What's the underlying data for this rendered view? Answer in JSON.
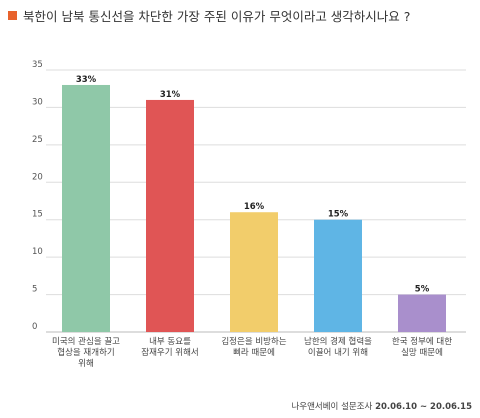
{
  "title": "북한이 남북 통신선을 차단한 가장 주된 이유가 무엇이라고 생각하시나요 ?",
  "title_marker_color": "#e8622c",
  "source": "나우앤서베이 설문조사",
  "source_dates": "20.06.10 ~ 20.06.15",
  "chart_data": {
    "type": "bar",
    "title": "북한이 남북 통신선을 차단한 가장 주된 이유가 무엇이라고 생각하시나요 ?",
    "categories": [
      [
        "미국의 관심을 끌고",
        "협상을 재개하기",
        "위해"
      ],
      [
        "내부 동요를",
        "잠재우기 위해서"
      ],
      [
        "김정은을 비방하는",
        "삐라 때문에"
      ],
      [
        "남한의 경제 협력을",
        "이끌어 내기 위해"
      ],
      [
        "한국 정부에 대한",
        "실망 때문에"
      ]
    ],
    "values": [
      33,
      31,
      16,
      15,
      5
    ],
    "value_labels": [
      "33%",
      "31%",
      "16%",
      "15%",
      "5%"
    ],
    "colors": [
      "#8fc8a8",
      "#e05555",
      "#f2cd6b",
      "#5fb5e5",
      "#a98fcc"
    ],
    "yticks": [
      0,
      5,
      10,
      15,
      20,
      25,
      30,
      35
    ],
    "ylim": [
      0,
      35
    ],
    "grid": true,
    "legend": "none",
    "xlabel": "",
    "ylabel": ""
  }
}
